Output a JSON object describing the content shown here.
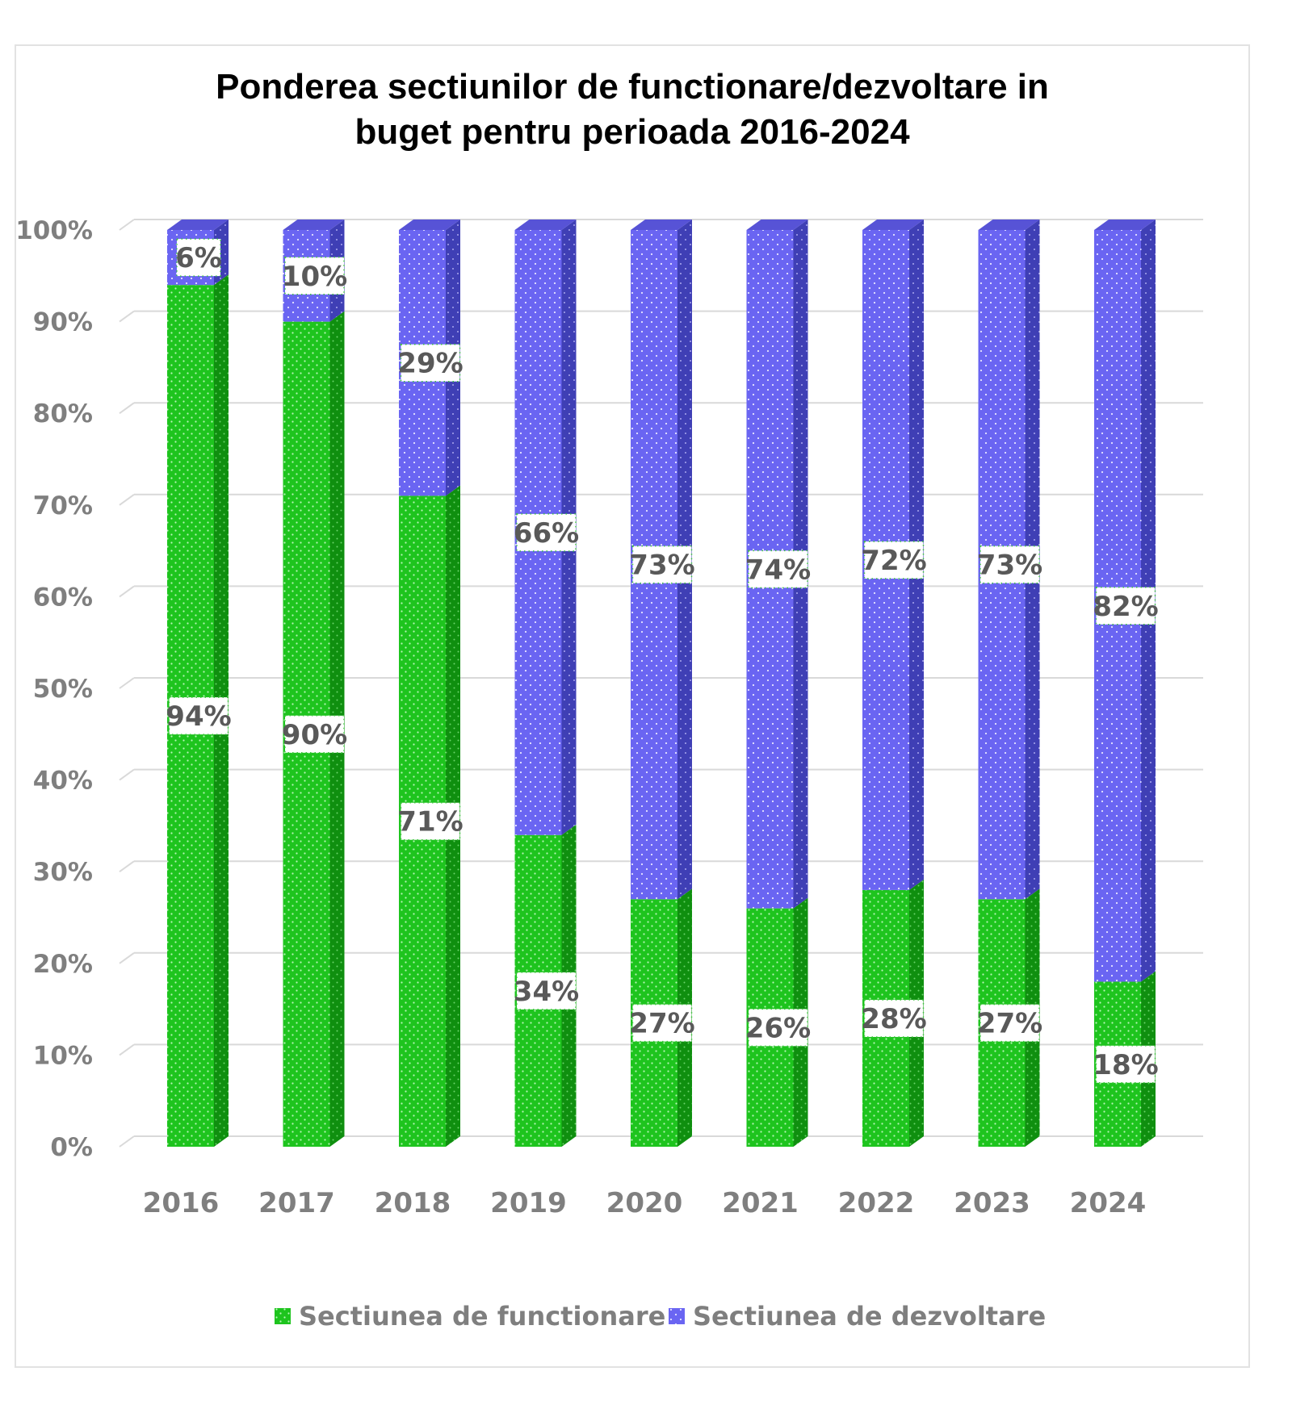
{
  "title_lines": [
    "Ponderea sectiunilor de functionare/dezvoltare in",
    "buget pentru perioada 2016-2024"
  ],
  "colors": {
    "functionare": "#1ec41e",
    "functionare_side": "#0f8f0f",
    "dezvoltare": "#6a65f2",
    "dezvoltare_side": "#3f3fb5",
    "grid": "#d9d9d9",
    "tick_text": "#7f7f7f",
    "label_text": "#595959"
  },
  "chart_data": {
    "type": "bar",
    "stacked": true,
    "three_d": true,
    "categories": [
      "2016",
      "2017",
      "2018",
      "2019",
      "2020",
      "2021",
      "2022",
      "2023",
      "2024"
    ],
    "series": [
      {
        "name": "Sectiunea de functionare",
        "values": [
          94,
          90,
          71,
          34,
          27,
          26,
          28,
          27,
          18
        ],
        "labels": [
          "94%",
          "90%",
          "71%",
          "34%",
          "27%",
          "26%",
          "28%",
          "27%",
          "18%"
        ]
      },
      {
        "name": "Sectiunea de dezvoltare",
        "values": [
          6,
          10,
          29,
          66,
          73,
          74,
          72,
          73,
          82
        ],
        "labels": [
          "6%",
          "10%",
          "29%",
          "66%",
          "73%",
          "74%",
          "72%",
          "73%",
          "82%"
        ]
      }
    ],
    "yticks": [
      "0%",
      "10%",
      "20%",
      "30%",
      "40%",
      "50%",
      "60%",
      "70%",
      "80%",
      "90%",
      "100%"
    ],
    "ylim": [
      0,
      100
    ],
    "grid": true,
    "legend_position": "bottom"
  }
}
